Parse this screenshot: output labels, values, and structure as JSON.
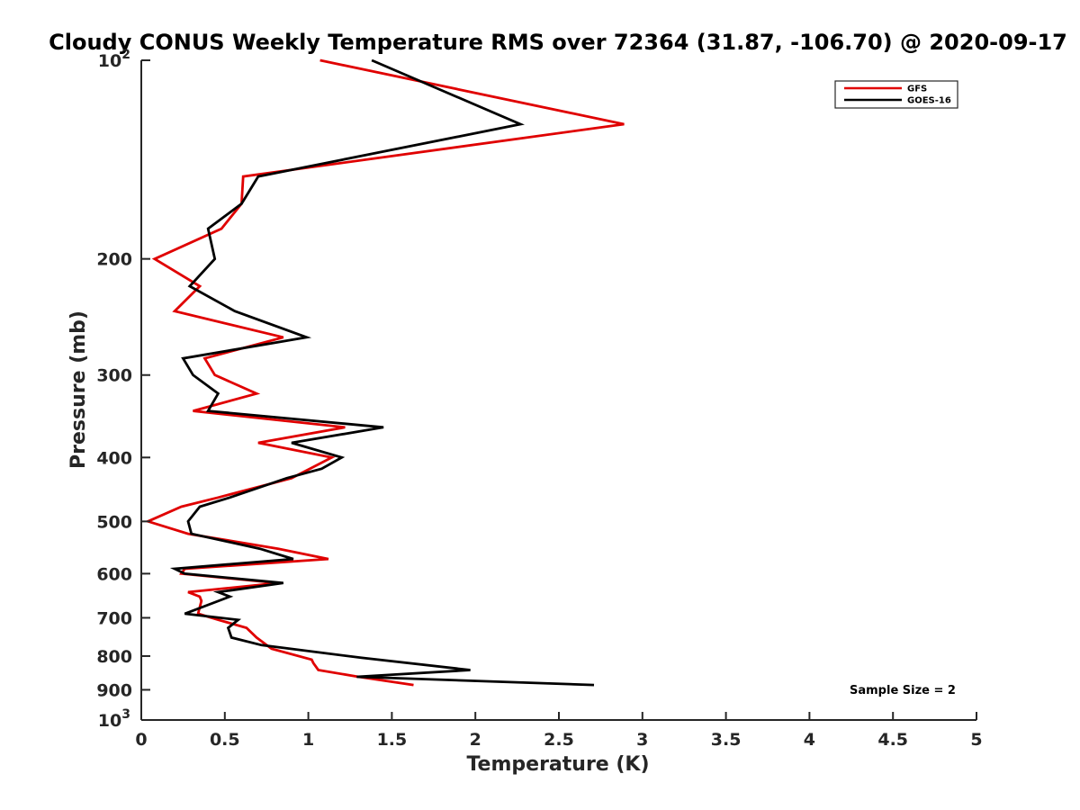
{
  "chart_data": {
    "type": "line",
    "title": "Cloudy CONUS Weekly Temperature RMS over 72364 (31.87, -106.70) @ 2020-09-17",
    "xlabel": "Temperature (K)",
    "ylabel": "Pressure (mb)",
    "xlim": [
      0,
      5
    ],
    "ylim": [
      100,
      1000
    ],
    "yscale": "log",
    "y_reversed": true,
    "x_ticks": [
      "0",
      "0.5",
      "1",
      "1.5",
      "2",
      "2.5",
      "3",
      "3.5",
      "4",
      "4.5",
      "5"
    ],
    "y_ticks": [
      {
        "value": 100,
        "base": "10",
        "exp": "2"
      },
      {
        "value": 200,
        "label": "200"
      },
      {
        "value": 300,
        "label": "300"
      },
      {
        "value": 400,
        "label": "400"
      },
      {
        "value": 500,
        "label": "500"
      },
      {
        "value": 600,
        "label": "600"
      },
      {
        "value": 700,
        "label": "700"
      },
      {
        "value": 800,
        "label": "800"
      },
      {
        "value": 900,
        "label": "900"
      },
      {
        "value": 1000,
        "base": "10",
        "exp": "3"
      }
    ],
    "legend_position": "top-right",
    "grid": false,
    "annotation": "Sample Size = 2",
    "series": [
      {
        "name": "GFS",
        "color": "#e00000",
        "points": [
          [
            1.07,
            100
          ],
          [
            2.89,
            125
          ],
          [
            0.61,
            150
          ],
          [
            0.6,
            165
          ],
          [
            0.48,
            180
          ],
          [
            0.08,
            200
          ],
          [
            0.35,
            220
          ],
          [
            0.2,
            240
          ],
          [
            0.85,
            263
          ],
          [
            0.38,
            283
          ],
          [
            0.44,
            300
          ],
          [
            0.69,
            320
          ],
          [
            0.31,
            340
          ],
          [
            1.22,
            360
          ],
          [
            0.7,
            380
          ],
          [
            1.14,
            400
          ],
          [
            1.01,
            416
          ],
          [
            0.9,
            430
          ],
          [
            0.46,
            460
          ],
          [
            0.24,
            475
          ],
          [
            0.04,
            500
          ],
          [
            0.28,
            522
          ],
          [
            0.82,
            550
          ],
          [
            1.12,
            570
          ],
          [
            0.26,
            590
          ],
          [
            0.24,
            600
          ],
          [
            0.82,
            620
          ],
          [
            0.28,
            640
          ],
          [
            0.35,
            650
          ],
          [
            0.36,
            660
          ],
          [
            0.34,
            690
          ],
          [
            0.46,
            705
          ],
          [
            0.63,
            725
          ],
          [
            0.69,
            750
          ],
          [
            0.78,
            780
          ],
          [
            1.02,
            810
          ],
          [
            1.03,
            820
          ],
          [
            1.06,
            840
          ],
          [
            1.3,
            860
          ],
          [
            1.63,
            885
          ]
        ]
      },
      {
        "name": "GOES-16",
        "color": "#000000",
        "points": [
          [
            1.38,
            100
          ],
          [
            2.27,
            125
          ],
          [
            0.7,
            150
          ],
          [
            0.6,
            165
          ],
          [
            0.4,
            180
          ],
          [
            0.44,
            200
          ],
          [
            0.29,
            220
          ],
          [
            0.56,
            240
          ],
          [
            0.99,
            263
          ],
          [
            0.25,
            283
          ],
          [
            0.31,
            300
          ],
          [
            0.46,
            320
          ],
          [
            0.4,
            340
          ],
          [
            1.45,
            360
          ],
          [
            0.9,
            380
          ],
          [
            1.2,
            400
          ],
          [
            1.08,
            416
          ],
          [
            0.87,
            430
          ],
          [
            0.53,
            460
          ],
          [
            0.35,
            475
          ],
          [
            0.28,
            500
          ],
          [
            0.3,
            522
          ],
          [
            0.71,
            550
          ],
          [
            0.91,
            570
          ],
          [
            0.2,
            590
          ],
          [
            0.26,
            600
          ],
          [
            0.85,
            620
          ],
          [
            0.46,
            640
          ],
          [
            0.53,
            650
          ],
          [
            0.26,
            690
          ],
          [
            0.58,
            705
          ],
          [
            0.52,
            725
          ],
          [
            0.54,
            750
          ],
          [
            0.72,
            770
          ],
          [
            1.32,
            805
          ],
          [
            1.97,
            840
          ],
          [
            1.29,
            860
          ],
          [
            2.71,
            885
          ]
        ]
      }
    ]
  },
  "colors": {
    "axis": "#262626",
    "gfs": "#e00000",
    "goes16": "#000000"
  }
}
